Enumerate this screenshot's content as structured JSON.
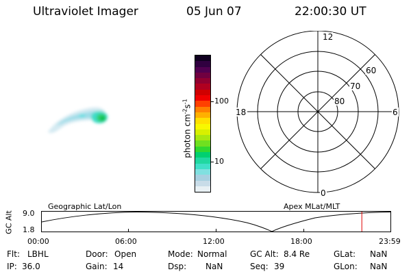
{
  "header": {
    "title": "Ultraviolet Imager",
    "date": "05 Jun 07",
    "time": "22:00:30 UT"
  },
  "colorbar": {
    "label": "photon cm",
    "exp1": "-2",
    "mid": "s",
    "exp2": "-1",
    "ticks": [
      "100",
      "10"
    ],
    "colors": [
      "#e8f0f4",
      "#c8dce8",
      "#a8d0e0",
      "#80e0e0",
      "#40e0c8",
      "#20d8a0",
      "#00d070",
      "#30d830",
      "#70e020",
      "#a8e810",
      "#d8f000",
      "#f8f800",
      "#ffe000",
      "#ffb000",
      "#ff8000",
      "#ff4000",
      "#f00000",
      "#d00000",
      "#b00020",
      "#900030",
      "#700040",
      "#500050",
      "#300040",
      "#100020"
    ]
  },
  "polar_plot": {
    "mlt_labels": {
      "top": "12",
      "left": "18",
      "right": "6",
      "bottom": "0"
    },
    "lat_labels": [
      "60",
      "70",
      "80"
    ]
  },
  "timeline": {
    "title_left": "Geographic Lat/Lon",
    "title_right": "Apex MLat/MLT",
    "axis_label": "GC Alt",
    "y_max": "9.0",
    "y_min": "1.8",
    "x_ticks": [
      "00:00",
      "06:00",
      "12:00",
      "18:00",
      "23:59"
    ],
    "current_marker_hour": 22.01
  },
  "info": {
    "flt_label": "Flt:",
    "flt_value": "LBHL",
    "ip_label": "IP:",
    "ip_value": "36.0",
    "door_label": "Door:",
    "door_value": "Open",
    "gain_label": "Gain:",
    "gain_value": "14",
    "mode_label": "Mode:",
    "mode_value": "Normal",
    "dsp_label": "Dsp:",
    "dsp_value": "NaN",
    "gcalt_label": "GC Alt:",
    "gcalt_value": "8.4 Re",
    "seq_label": "Seq:",
    "seq_value": "39",
    "glat_label": "GLat:",
    "glat_value": "NaN",
    "glon_label": "GLon:",
    "glon_value": "NaN"
  }
}
